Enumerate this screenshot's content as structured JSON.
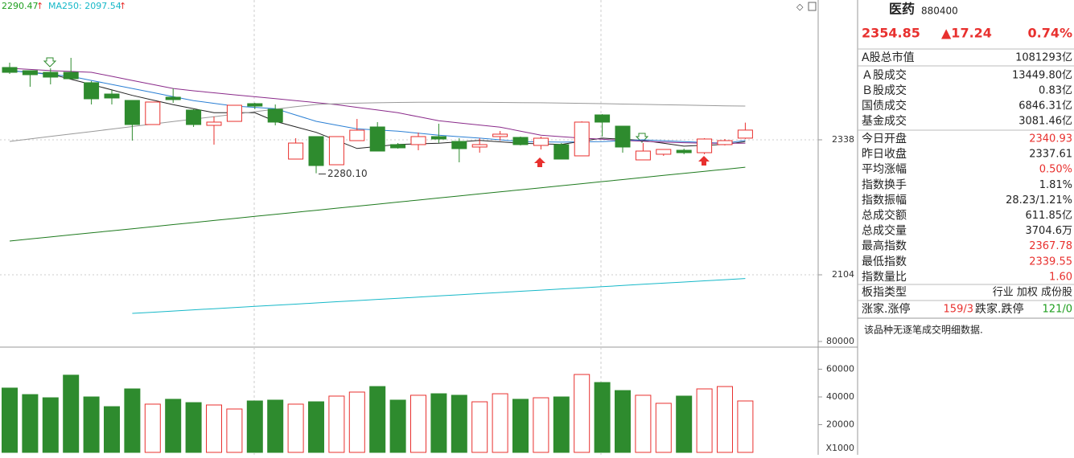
{
  "chart_data": [
    {
      "type": "candlestick",
      "legend": [
        {
          "text": "2290.47",
          "color": "#1e9e1e"
        },
        {
          "text": "MA250: 2097.54",
          "color": "#16b8c8"
        }
      ],
      "annotation": "2280.10",
      "up_color": "#e8302e",
      "down_color": "#2e8b2e",
      "open": [
        2463.4,
        2457.8,
        2455,
        2455,
        2437,
        2417.4,
        2406.3,
        2364.5,
        2411.9,
        2389.6,
        2363.1,
        2370,
        2400.7,
        2391,
        2304.6,
        2343.6,
        2294.8,
        2336.6,
        2360.3,
        2329.7,
        2329.7,
        2343.6,
        2335.2,
        2325.5,
        2343.6,
        2342.2,
        2328.3,
        2329.7,
        2310.2,
        2381.2,
        2361.7,
        2303.2,
        2313,
        2319.9,
        2315.7,
        2329.7,
        2340.93
      ],
      "high": [
        2471.7,
        2457.8,
        2462,
        2480.1,
        2440,
        2424.4,
        2406.3,
        2403.5,
        2427.2,
        2391,
        2378.4,
        2397.9,
        2402.1,
        2399.3,
        2340.8,
        2343.6,
        2343.6,
        2374.2,
        2368.7,
        2332.4,
        2350.6,
        2365.9,
        2340.8,
        2340.8,
        2353.3,
        2343.6,
        2343.6,
        2332.4,
        2370,
        2382.5,
        2361.7,
        2332.4,
        2321.3,
        2322.7,
        2340.8,
        2339.4,
        2367.78
      ],
      "low": [
        2452.2,
        2430,
        2434.1,
        2443.9,
        2399.3,
        2399.3,
        2336.6,
        2364.5,
        2402.1,
        2360.3,
        2329.7,
        2370,
        2391,
        2363.1,
        2304.6,
        2280.1,
        2294.8,
        2336.6,
        2318.5,
        2322.7,
        2319.9,
        2332.4,
        2299,
        2315.7,
        2336.6,
        2328.3,
        2321.3,
        2304.6,
        2310.2,
        2343.6,
        2315.7,
        2303.2,
        2310.2,
        2313,
        2313,
        2328.3,
        2339.55
      ],
      "close": [
        2455,
        2450.9,
        2446.7,
        2443.9,
        2409.1,
        2410.5,
        2364.5,
        2403.5,
        2407.7,
        2364.5,
        2368.7,
        2397.9,
        2396.5,
        2368.7,
        2332.4,
        2293.4,
        2343.6,
        2354.7,
        2318.5,
        2324.1,
        2343.6,
        2339.4,
        2322.7,
        2329.7,
        2347.8,
        2329.7,
        2340.8,
        2304.6,
        2368.7,
        2368.7,
        2325.5,
        2318.5,
        2321.3,
        2315.7,
        2339.4,
        2336.6,
        2354.85
      ],
      "series": [
        {
          "color": "#222222",
          "values": [
            2458,
            2455,
            2452,
            2443,
            2434,
            2424.5,
            2415,
            2407,
            2399,
            2392,
            2385,
            2385,
            2385,
            2370,
            2360.5,
            2351,
            2337,
            2323,
            2326.5,
            2330,
            2331,
            2332,
            2334.5,
            2337,
            2334.5,
            2332,
            2331,
            2330,
            2335.5,
            2341,
            2339,
            2337,
            2332,
            2327,
            2328.5,
            2330,
            2335
          ]
        },
        {
          "color": "#2a7fd4",
          "values": [
            2458,
            2454.7,
            2451.3,
            2448,
            2441,
            2434,
            2427,
            2420,
            2413,
            2406,
            2401.3,
            2396.5,
            2394.3,
            2392,
            2381,
            2370,
            2363.5,
            2357,
            2355,
            2353,
            2349.5,
            2346,
            2343.5,
            2341,
            2338,
            2335,
            2334.5,
            2334,
            2334.5,
            2335,
            2336.5,
            2338,
            2336.5,
            2335,
            2333.5,
            2332,
            2337
          ]
        },
        {
          "color": "#8a2a8a",
          "values": [
            2462,
            2460,
            2458,
            2456.5,
            2455,
            2448,
            2441,
            2434,
            2427,
            2423,
            2419.5,
            2416,
            2412.7,
            2409.3,
            2406,
            2402.5,
            2399,
            2394.3,
            2389.7,
            2385,
            2378,
            2371,
            2367.3,
            2363.7,
            2360,
            2353,
            2346,
            2343.5,
            2341,
            2339,
            2337,
            2335.5,
            2334,
            2333,
            2332,
            2332,
            2332
          ]
        },
        {
          "color": "#999999",
          "values": [
            2335.2,
            2339.5,
            2343.8,
            2348.1,
            2352.4,
            2356.7,
            2361,
            2365.3,
            2369.6,
            2373.9,
            2378.2,
            2382.5,
            2386.8,
            2391.1,
            2395.4,
            2399.3,
            2400.5,
            2401.5,
            2402.3,
            2402.8,
            2403,
            2403.2,
            2403.2,
            2403,
            2402.8,
            2402.5,
            2402.2,
            2401.8,
            2401.3,
            2400.7,
            2400,
            2399.4,
            2398.8,
            2398.2,
            2397.6,
            2397,
            2396.5
          ]
        },
        {
          "color": "#1e7a1e",
          "values": [
            2162.5,
            2166.1,
            2169.6,
            2173.2,
            2176.7,
            2180.3,
            2183.8,
            2187.4,
            2191,
            2194.5,
            2198.1,
            2201.6,
            2205.2,
            2208.7,
            2212.3,
            2215.8,
            2219.4,
            2223,
            2226.5,
            2230.1,
            2233.6,
            2237.2,
            2240.7,
            2244.3,
            2247.8,
            2251.4,
            2254.9,
            2258.5,
            2262,
            2265.6,
            2269.1,
            2272.7,
            2276.3,
            2279.8,
            2283.4,
            2286.9,
            2290.47
          ]
        },
        {
          "color": "#16b8c8",
          "values": [
            null,
            null,
            null,
            null,
            null,
            null,
            2037.1,
            2039.1,
            2041.1,
            2043.2,
            2045.2,
            2047.2,
            2049.2,
            2051.2,
            2053.2,
            2055.2,
            2057.3,
            2059.3,
            2061.3,
            2063.3,
            2065.3,
            2067.3,
            2069.3,
            2071.4,
            2073.4,
            2075.4,
            2077.4,
            2079.4,
            2081.4,
            2083.4,
            2085.5,
            2087.5,
            2089.5,
            2091.5,
            2093.5,
            2095.5,
            2097.54
          ]
        }
      ],
      "ylim": [
        1981.4,
        2580.4
      ],
      "yticks": [
        2104,
        2338
      ],
      "grid": true
    },
    {
      "type": "bar",
      "unit_label": "X1000",
      "values": [
        46400,
        41700,
        39400,
        55700,
        40000,
        33000,
        45800,
        34800,
        38300,
        35900,
        34200,
        31300,
        37100,
        37700,
        34800,
        36500,
        40600,
        43500,
        47500,
        37700,
        41200,
        42300,
        41200,
        36500,
        42300,
        38300,
        39400,
        40000,
        56200,
        50400,
        44600,
        41200,
        35400,
        40600,
        45800,
        47500,
        37100
      ],
      "ylim": [
        0,
        80000
      ],
      "yticks": [
        20000,
        40000,
        60000,
        80000
      ]
    }
  ],
  "quote_panel": {
    "name": "医药",
    "code": "880400",
    "price": "2354.85",
    "change": "▲17.24",
    "change_pct": "0.74%",
    "up_color": "#e8302e",
    "rows": [
      {
        "label": "A股总市值",
        "value": "1081293亿"
      },
      {
        "label": "Ａ股成交",
        "value": "13449.80亿"
      },
      {
        "label": "Ｂ股成交",
        "value": "0.83亿"
      },
      {
        "label": "国债成交",
        "value": "6846.31亿"
      },
      {
        "label": "基金成交",
        "value": "3081.46亿"
      },
      {
        "label": "今日开盘",
        "value": "2340.93",
        "color": "#e8302e"
      },
      {
        "label": "昨日收盘",
        "value": "2337.61"
      },
      {
        "label": "平均涨幅",
        "value": "0.50%",
        "color": "#e8302e"
      },
      {
        "label": "指数换手",
        "value": "1.81%"
      },
      {
        "label": "指数振幅",
        "value": "28.23/1.21%"
      },
      {
        "label": "总成交额",
        "value": "611.85亿"
      },
      {
        "label": "总成交量",
        "value": "3704.6万"
      },
      {
        "label": "最高指数",
        "value": "2367.78",
        "color": "#e8302e"
      },
      {
        "label": "最低指数",
        "value": "2339.55",
        "color": "#e8302e"
      },
      {
        "label": "指数量比",
        "value": "1.60",
        "color": "#e8302e"
      },
      {
        "label": "板指类型",
        "value": "行业 加权 成份股"
      },
      {
        "label": "涨家.涨停",
        "value": "159/3",
        "color": "#e8302e",
        "label2": "跌家.跌停",
        "value2": "121/0",
        "color2": "#1e9e1e"
      }
    ],
    "note": "该品种无逐笔成交明细数据."
  }
}
